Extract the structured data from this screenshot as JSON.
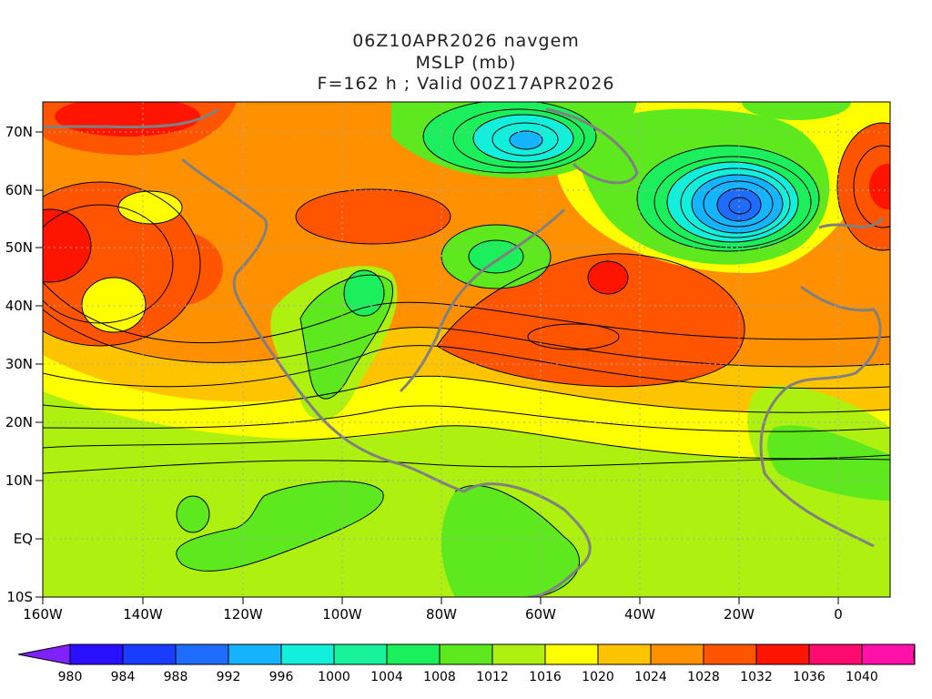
{
  "header": {
    "line1": "06Z10APR2026 navgem",
    "line2": "MSLP (mb)",
    "line3": "F=162 h ; Valid 00Z17APR2026"
  },
  "axes": {
    "x_ticks": [
      "160W",
      "140W",
      "120W",
      "100W",
      "80W",
      "60W",
      "40W",
      "20W",
      "0"
    ],
    "y_ticks": [
      "70N",
      "60N",
      "50N",
      "40N",
      "30N",
      "20N",
      "10N",
      "EQ",
      "10S"
    ]
  },
  "colorbar": {
    "labels": [
      "980",
      "984",
      "988",
      "992",
      "996",
      "1000",
      "1004",
      "1008",
      "1012",
      "1016",
      "1020",
      "1024",
      "1028",
      "1032",
      "1036",
      "1040"
    ],
    "colors": [
      "#7f22ff",
      "#2a10ff",
      "#1a3cff",
      "#1f6dff",
      "#14b4ff",
      "#12f0dc",
      "#18f29a",
      "#1cef5c",
      "#5ee81e",
      "#aef00f",
      "#ffff00",
      "#ffc400",
      "#ff9000",
      "#ff5400",
      "#ff1400",
      "#ff0a6e",
      "#ff10a8",
      "#ff1cd2"
    ]
  },
  "colors": {
    "frame": "#000000",
    "coast": "#808080",
    "grid": "#aaaaaa"
  }
}
